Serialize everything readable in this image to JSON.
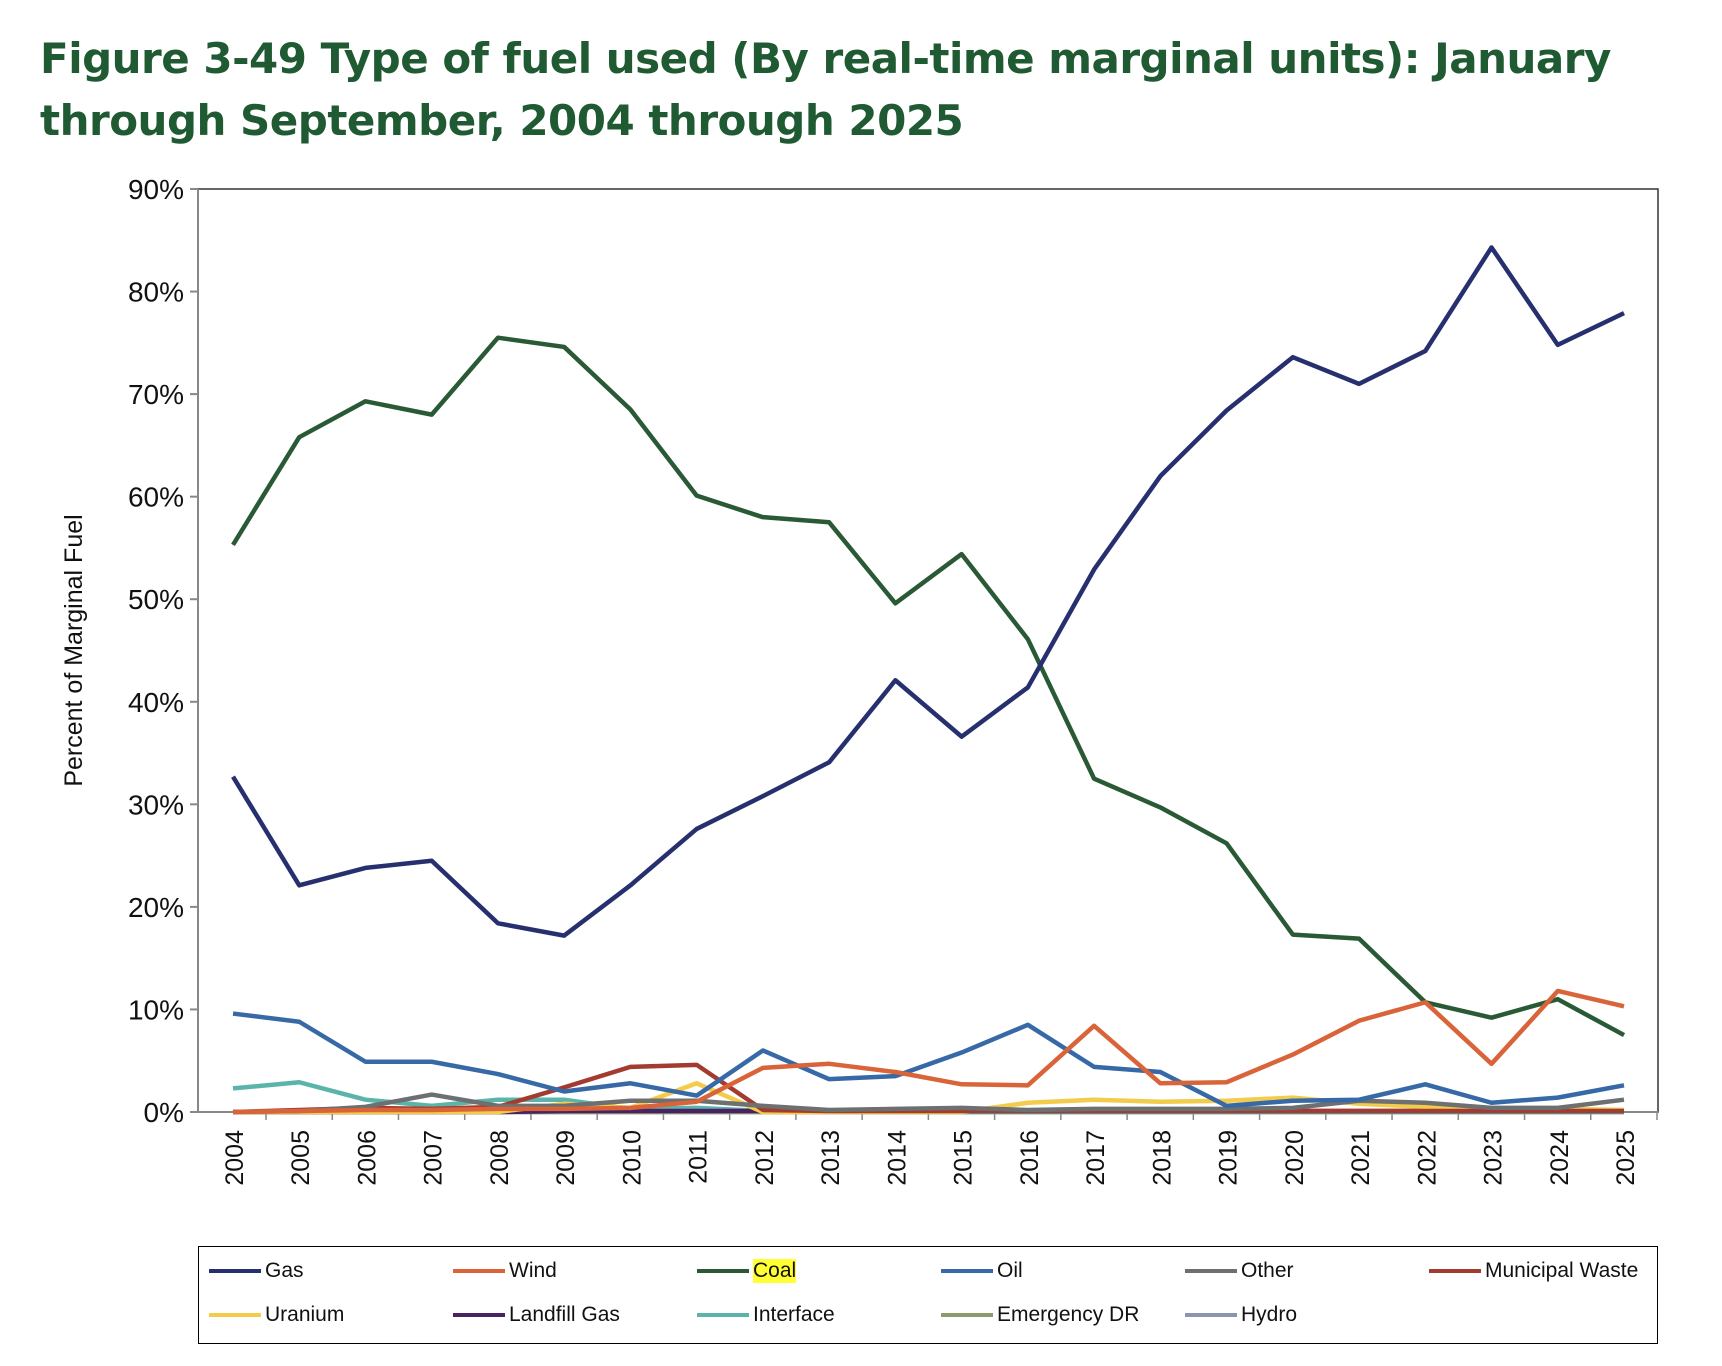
{
  "title": "Figure 3-49 Type of fuel used (By real-time marginal units): January through September, 2004 through 2025",
  "chart_data": {
    "type": "line",
    "title": "Figure 3-49 Type of fuel used (By real-time marginal units): January through September, 2004 through 2025",
    "xlabel": "",
    "ylabel": "Percent of Marginal Fuel",
    "ylim": [
      0,
      90
    ],
    "yticks": [
      "0%",
      "10%",
      "20%",
      "30%",
      "40%",
      "50%",
      "60%",
      "70%",
      "80%",
      "90%"
    ],
    "grid": false,
    "legend": "bottom",
    "x": [
      "2004",
      "2005",
      "2006",
      "2007",
      "2008",
      "2009",
      "2010",
      "2011",
      "2012",
      "2013",
      "2014",
      "2015",
      "2016",
      "2017",
      "2018",
      "2019",
      "2020",
      "2021",
      "2022",
      "2023",
      "2024",
      "2025"
    ],
    "series": [
      {
        "name": "Gas",
        "color": "#27306e",
        "values": [
          32.7,
          22.1,
          23.8,
          24.5,
          18.4,
          17.2,
          22.1,
          27.6,
          30.8,
          34.1,
          42.1,
          36.6,
          41.4,
          52.9,
          62.0,
          68.4,
          73.6,
          71.0,
          74.2,
          84.3,
          74.8,
          77.9
        ]
      },
      {
        "name": "Wind",
        "color": "#d9643a",
        "values": [
          0,
          0.1,
          0.2,
          0.2,
          0.3,
          0.3,
          0.4,
          1.0,
          4.3,
          4.7,
          3.9,
          2.7,
          2.6,
          8.4,
          2.8,
          2.9,
          5.6,
          8.9,
          10.7,
          4.7,
          11.8,
          10.3
        ]
      },
      {
        "name": "Coal",
        "color": "#2a5a35",
        "highlight": "#ffff33",
        "values": [
          55.3,
          65.8,
          69.3,
          68.0,
          75.5,
          74.6,
          68.5,
          60.1,
          58.0,
          57.5,
          49.6,
          54.4,
          46.1,
          32.5,
          29.7,
          26.2,
          17.3,
          16.9,
          10.7,
          9.2,
          11.0,
          7.5
        ]
      },
      {
        "name": "Oil",
        "color": "#3669a6",
        "values": [
          9.6,
          8.8,
          4.9,
          4.9,
          3.7,
          2.0,
          2.8,
          1.6,
          6.0,
          3.2,
          3.5,
          5.8,
          8.5,
          4.4,
          3.9,
          0.6,
          1.1,
          1.2,
          2.7,
          0.9,
          1.4,
          2.6
        ]
      },
      {
        "name": "Other",
        "color": "#6d6f71",
        "values": [
          0,
          0.1,
          0.5,
          1.7,
          0.6,
          0.6,
          1.1,
          1.1,
          0.6,
          0.2,
          0.3,
          0.4,
          0.2,
          0.3,
          0.3,
          0.3,
          0.4,
          1.1,
          0.9,
          0.4,
          0.4,
          1.2
        ]
      },
      {
        "name": "Municipal Waste",
        "color": "#a33b30",
        "values": [
          0,
          0.2,
          0.4,
          0.3,
          0.5,
          2.4,
          4.4,
          4.6,
          0.2,
          0.1,
          0.1,
          0.1,
          0.1,
          0.1,
          0.1,
          0.1,
          0.1,
          0.1,
          0.1,
          0.1,
          0.1,
          0.1
        ]
      },
      {
        "name": "Uranium",
        "color": "#f2cc4a",
        "values": [
          0,
          0,
          0,
          0,
          0,
          0.8,
          0.4,
          2.8,
          0,
          0,
          0,
          0,
          0.9,
          1.2,
          1.0,
          1.1,
          1.4,
          0.8,
          0.5,
          0.3,
          0.3,
          0.2
        ]
      },
      {
        "name": "Landfill Gas",
        "color": "#4a2163",
        "values": [
          0,
          0,
          0,
          0,
          0,
          0.1,
          0.1,
          0.1,
          0.1,
          0.1,
          0.1,
          0.1,
          0.1,
          0.1,
          0.1,
          0.1,
          0.1,
          0.1,
          0.1,
          0.1,
          0.1,
          0.1
        ]
      },
      {
        "name": "Interface",
        "color": "#5ab4aa",
        "values": [
          2.3,
          2.9,
          1.2,
          0.6,
          1.2,
          1.2,
          0.3,
          0.4,
          0.1,
          0,
          0,
          0,
          0,
          0,
          0,
          0,
          0,
          0,
          0,
          0,
          0,
          0
        ]
      },
      {
        "name": "Emergency DR",
        "color": "#8f9a6c",
        "values": [
          0,
          0,
          0,
          0,
          0,
          0,
          0,
          0,
          0,
          0,
          0,
          0,
          0,
          0,
          0,
          0,
          0,
          0,
          0,
          0,
          0,
          0
        ]
      },
      {
        "name": "Hydro",
        "color": "#8c94b0",
        "values": [
          0,
          0,
          0,
          0,
          0,
          0,
          0,
          0,
          0,
          0,
          0,
          0,
          0,
          0,
          0,
          0,
          0,
          0,
          0,
          0,
          0,
          0
        ]
      }
    ]
  }
}
